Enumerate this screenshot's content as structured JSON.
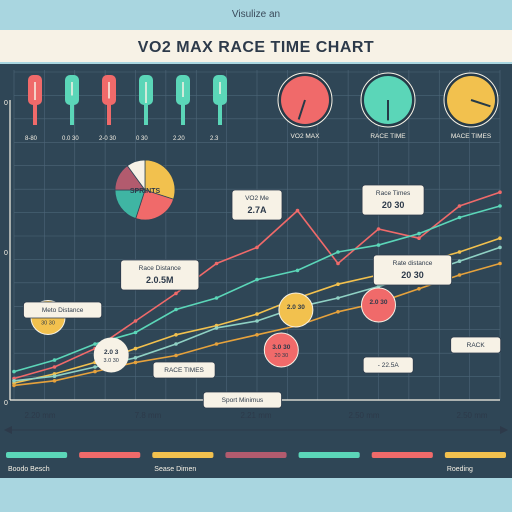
{
  "top_caption": "Visulize an",
  "chart_data": {
    "type": "line",
    "title": "VO2 MAX RACE TIME CHART",
    "x_tick_labels": [
      "2.20 mm",
      "7.8 mm",
      "2.21 mm",
      "2.50 mm",
      "2.50 mm"
    ],
    "y_tick_labels": [
      "0",
      "0",
      "0"
    ],
    "gauges": [
      {
        "label": "VO2 MAX",
        "color": "#f06a6a",
        "value": 0.55
      },
      {
        "label": "RACE TIME",
        "color": "#5bd6b8",
        "value": 0.5
      },
      {
        "label": "MACE TIMES",
        "color": "#f2c14e",
        "value": 0.3
      }
    ],
    "top_bars": [
      {
        "label": "8-80",
        "color": "#f06a6a",
        "level": 0.5
      },
      {
        "label": "0.0 30",
        "color": "#5bd6b8",
        "level": 0.65
      },
      {
        "label": "2-0 30",
        "color": "#f06a6a",
        "level": 0.55
      },
      {
        "label": "0 30",
        "color": "#5bd6b8",
        "level": 0.4
      },
      {
        "label": "2.20",
        "color": "#5bd6b8",
        "level": 0.6
      },
      {
        "label": "2.3",
        "color": "#5bd6b8",
        "level": 0.7
      }
    ],
    "pie": {
      "label": "SPRINTS",
      "slices": [
        {
          "value": 30,
          "color": "#f2c14e"
        },
        {
          "value": 25,
          "color": "#f06a6a"
        },
        {
          "value": 20,
          "color": "#3fb5a3"
        },
        {
          "value": 15,
          "color": "#b25b6e"
        },
        {
          "value": 10,
          "color": "#f7f2e6"
        }
      ]
    },
    "series": [
      {
        "name": "",
        "color": "#f06a6a",
        "values": [
          0.05,
          0.1,
          0.18,
          0.3,
          0.42,
          0.55,
          0.62,
          0.78,
          0.55,
          0.7,
          0.66,
          0.8,
          0.86
        ]
      },
      {
        "name": "",
        "color": "#5bd6b8",
        "values": [
          0.08,
          0.13,
          0.2,
          0.25,
          0.35,
          0.4,
          0.48,
          0.52,
          0.6,
          0.63,
          0.68,
          0.75,
          0.8
        ]
      },
      {
        "name": "",
        "color": "#f2c14e",
        "values": [
          0.03,
          0.07,
          0.12,
          0.18,
          0.24,
          0.28,
          0.33,
          0.4,
          0.46,
          0.5,
          0.55,
          0.6,
          0.66
        ]
      },
      {
        "name": "",
        "color": "#e6a23c",
        "values": [
          0.02,
          0.04,
          0.08,
          0.12,
          0.15,
          0.2,
          0.24,
          0.28,
          0.34,
          0.38,
          0.44,
          0.5,
          0.55
        ]
      },
      {
        "name": "",
        "color": "#8fd1c4",
        "values": [
          0.04,
          0.06,
          0.1,
          0.14,
          0.2,
          0.27,
          0.3,
          0.36,
          0.4,
          0.45,
          0.5,
          0.56,
          0.62
        ]
      }
    ],
    "bubbles": [
      {
        "label": "30.00",
        "sub": "30 30",
        "color": "#f2c14e",
        "cx": 0.07,
        "cy": 0.33
      },
      {
        "label": "2.0 3",
        "sub": "3.0 30",
        "color": "#f7f2e6",
        "cx": 0.2,
        "cy": 0.18
      },
      {
        "label": "3.0 30",
        "sub": "20 30",
        "color": "#f06a6a",
        "cx": 0.55,
        "cy": 0.2
      },
      {
        "label": "2.0 30",
        "sub": "",
        "color": "#f2c14e",
        "cx": 0.58,
        "cy": 0.36
      },
      {
        "label": "2.0 30",
        "sub": "",
        "color": "#f06a6a",
        "cx": 0.75,
        "cy": 0.38
      }
    ],
    "callouts": [
      {
        "text": "VO2 Me",
        "sub": "2.7A",
        "bg": "#f7f2e6",
        "bx": 0.5,
        "by": 0.78
      },
      {
        "text": "Race Times",
        "sub": "20 30",
        "bg": "#f7f2e6",
        "bx": 0.78,
        "by": 0.8
      },
      {
        "text": "Race Distance",
        "sub": "2.0.5M",
        "bg": "#f7f2e6",
        "bx": 0.3,
        "by": 0.5
      },
      {
        "text": "Meto Distance",
        "sub": "",
        "bg": "#f7f2e6",
        "bx": 0.1,
        "by": 0.36
      },
      {
        "text": "Rate distance",
        "sub": "20 30",
        "bg": "#f7f2e6",
        "bx": 0.82,
        "by": 0.52
      },
      {
        "text": "RACE TIMES",
        "sub": "",
        "bg": "#f7f2e6",
        "bx": 0.35,
        "by": 0.12
      },
      {
        "text": "- 22.5A",
        "sub": "",
        "bg": "#f7f2e6",
        "bx": 0.77,
        "by": 0.14
      },
      {
        "text": "RACK",
        "sub": "",
        "bg": "#f7f2e6",
        "bx": 0.95,
        "by": 0.22
      },
      {
        "text": "Sport Minimus",
        "sub": "",
        "bg": "#f7f2e6",
        "bx": 0.47,
        "by": 0.0
      }
    ],
    "legend": [
      {
        "label": "Boodo Besch",
        "color": "#5bd6b8"
      },
      {
        "label": "",
        "color": "#f06a6a"
      },
      {
        "label": "Sease Dimen",
        "color": "#f2c14e"
      },
      {
        "label": "",
        "color": "#b25b6e"
      },
      {
        "label": "",
        "color": "#5bd6b8"
      },
      {
        "label": "",
        "color": "#f06a6a"
      },
      {
        "label": "Roeding",
        "color": "#f2c14e"
      }
    ],
    "grid": true,
    "xlabel": "",
    "ylabel": ""
  }
}
